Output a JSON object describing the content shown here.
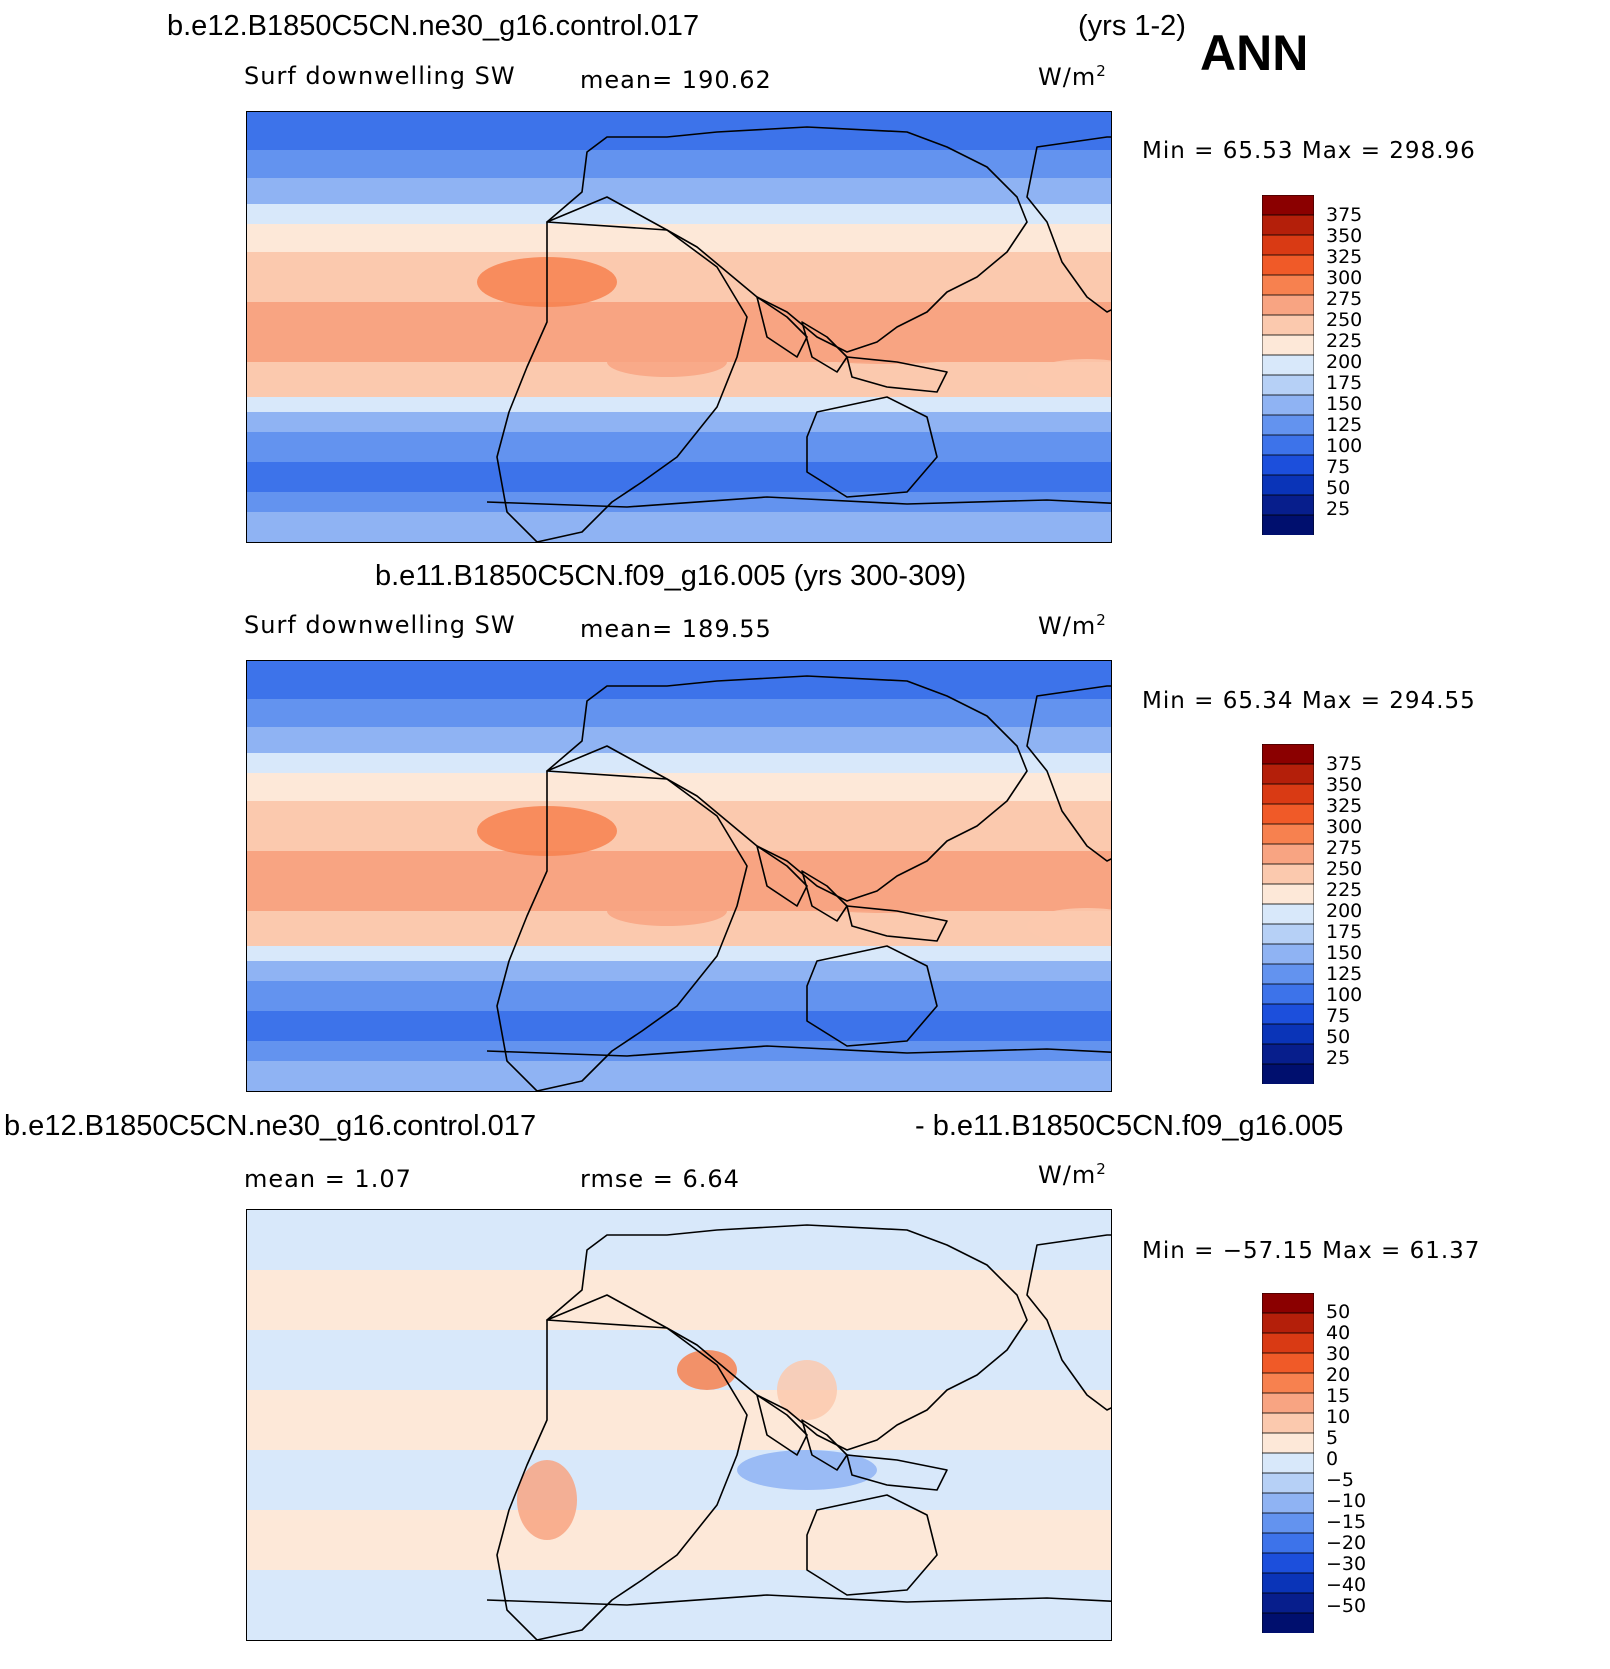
{
  "header": {
    "case1": "b.e12.B1850C5CN.ne30_g16.control.017",
    "years1": "(yrs 1-2)",
    "season": "ANN",
    "case2_title": "b.e11.B1850C5CN.f09_g16.005 (yrs 300-309)",
    "diff_left": "b.e12.B1850C5CN.ne30_g16.control.017",
    "diff_right": "- b.e11.B1850C5CN.f09_g16.005"
  },
  "panels": [
    {
      "id": "panel-1",
      "variable": "Surf downwelling SW",
      "mean": "mean= 190.62",
      "units": "W/m",
      "units_exp": "2",
      "minmax": "Min =   65.53 Max = 298.96",
      "colorbar_labels": [
        "375",
        "350",
        "325",
        "300",
        "275",
        "250",
        "225",
        "200",
        "175",
        "150",
        "125",
        "100",
        "75",
        "50",
        "25"
      ]
    },
    {
      "id": "panel-2",
      "variable": "Surf downwelling SW",
      "mean": "mean= 189.55",
      "units": "W/m",
      "units_exp": "2",
      "minmax": "Min =   65.34 Max = 294.55",
      "colorbar_labels": [
        "375",
        "350",
        "325",
        "300",
        "275",
        "250",
        "225",
        "200",
        "175",
        "150",
        "125",
        "100",
        "75",
        "50",
        "25"
      ]
    },
    {
      "id": "panel-3",
      "mean": "mean =    1.07",
      "rmse": "rmse =    6.64",
      "units": "W/m",
      "units_exp": "2",
      "minmax": "Min = −57.15 Max =   61.37",
      "colorbar_labels": [
        "50",
        "40",
        "30",
        "20",
        "15",
        "10",
        "5",
        "0",
        "−5",
        "−10",
        "−15",
        "−20",
        "−30",
        "−40",
        "−50"
      ]
    }
  ],
  "colors": {
    "colorbar": [
      "#8b0000",
      "#b41f0a",
      "#d93a14",
      "#f05a28",
      "#f7814f",
      "#f8a482",
      "#fbc9ae",
      "#fde8d8",
      "#d8e8fa",
      "#b6d0f6",
      "#8fb3f3",
      "#6393ef",
      "#3d73ea",
      "#1c4fdc",
      "#0a34b8",
      "#071e8c",
      "#000f6e"
    ]
  }
}
